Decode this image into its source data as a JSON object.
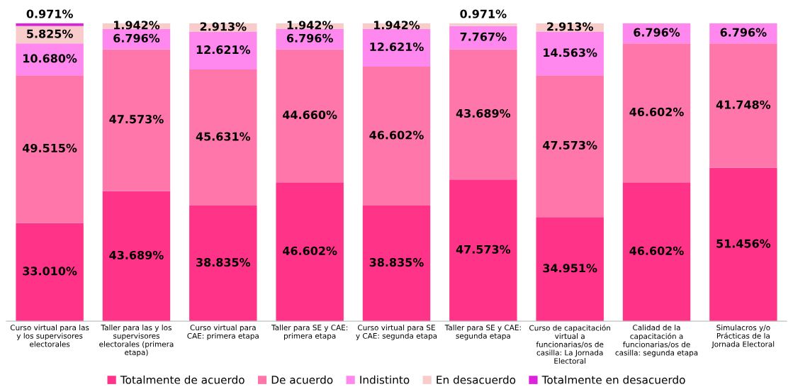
{
  "chart_data": {
    "type": "bar",
    "stacked": true,
    "ylim": [
      0,
      100
    ],
    "legend": "bottom",
    "grid": false,
    "tick_labels": "x",
    "categories": [
      "Curso virtual para las y los supervisores electorales",
      "Taller para las y los supervisores electorales (primera etapa)",
      "Curso virtual para CAE: primera etapa",
      "Taller para SE y CAE: primera etapa",
      "Curso virtual para SE y CAE: segunda etapa",
      "Taller para SE y CAE: segunda etapa",
      "Curso de capacitación virtual a funcionarias/os de casilla: La Jornada Electoral",
      "Calidad de la capacitación a funcionarias/os de casilla: segunda etapa",
      "Simulacros y/o Prácticas de la Jornada Electoral"
    ],
    "series": [
      {
        "name": "Totalmente de acuerdo",
        "color": "#ff3388",
        "values": [
          33.01,
          43.689,
          38.835,
          46.602,
          38.835,
          47.573,
          34.951,
          46.602,
          51.456
        ],
        "value_labels": [
          "33.010%",
          "43.689%",
          "38.835%",
          "46.602%",
          "38.835%",
          "47.573%",
          "34.951%",
          "46.602%",
          "51.456%"
        ]
      },
      {
        "name": "De acuerdo",
        "color": "#ff77aa",
        "values": [
          49.515,
          47.573,
          45.631,
          44.66,
          46.602,
          43.689,
          47.573,
          46.602,
          41.748
        ],
        "value_labels": [
          "49.515%",
          "47.573%",
          "45.631%",
          "44.660%",
          "46.602%",
          "43.689%",
          "47.573%",
          "46.602%",
          "41.748%"
        ]
      },
      {
        "name": "Indistinto",
        "color": "#ff88ee",
        "values": [
          10.68,
          6.796,
          12.621,
          6.796,
          12.621,
          7.767,
          14.563,
          6.796,
          6.796
        ],
        "value_labels": [
          "10.680%",
          "6.796%",
          "12.621%",
          "6.796%",
          "12.621%",
          "7.767%",
          "14.563%",
          "6.796%",
          "6.796%"
        ]
      },
      {
        "name": "En desacuerdo",
        "color": "#f9cccc",
        "values": [
          5.825,
          1.942,
          2.913,
          1.942,
          1.942,
          0.971,
          2.913,
          null,
          null
        ],
        "value_labels": [
          "5.825%",
          "1.942%",
          "2.913%",
          "1.942%",
          "1.942%",
          "0.971%",
          "2.913%",
          null,
          null
        ]
      },
      {
        "name": "Totalmente en desacuerdo",
        "color": "#dd22dd",
        "values": [
          0.971,
          null,
          null,
          null,
          null,
          null,
          null,
          null,
          null
        ],
        "value_labels": [
          "0.971%",
          null,
          null,
          null,
          null,
          null,
          null,
          null,
          null
        ]
      }
    ]
  }
}
